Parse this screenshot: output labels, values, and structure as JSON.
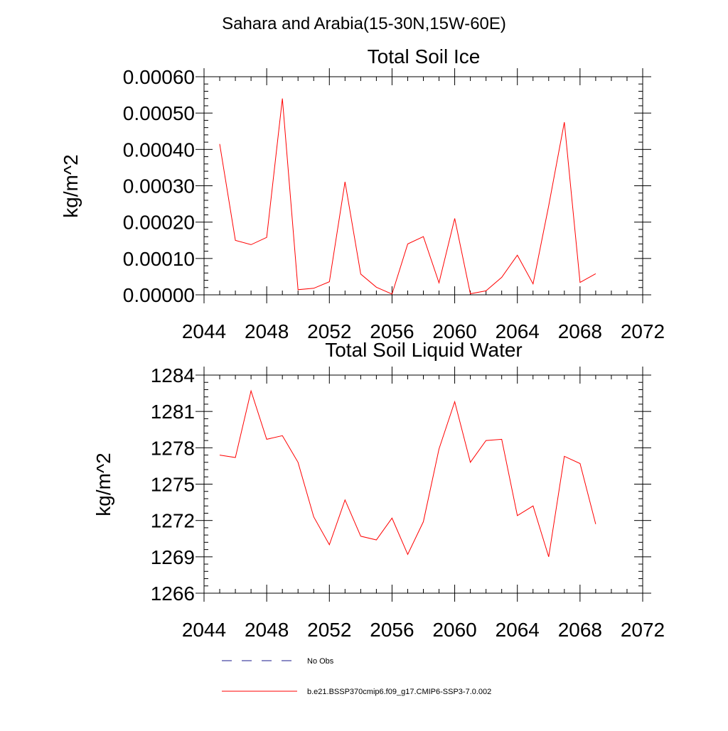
{
  "figure": {
    "suptitle": "Sahara and Arabia(15-30N,15W-60E)"
  },
  "colors": {
    "series": "#ff0000",
    "obs": "#1a1a8c",
    "axis": "#000000"
  },
  "legend": {
    "placement": "bottom",
    "items": [
      {
        "label": "No Obs",
        "style": "dashed",
        "color": "#1a1a8c"
      },
      {
        "label": "b.e21.BSSP370cmip6.f09_g17.CMIP6-SSP3-7.0.002",
        "style": "solid",
        "color": "#ff0000"
      }
    ]
  },
  "chart_data": [
    {
      "type": "line",
      "title": "Total Soil Ice",
      "xlabel": "",
      "ylabel": "kg/m^2",
      "xlim": [
        2044,
        2072
      ],
      "ylim": [
        0,
        0.0006
      ],
      "xticks": [
        2044,
        2048,
        2052,
        2056,
        2060,
        2064,
        2068,
        2072
      ],
      "xtick_labels": [
        "2044",
        "2048",
        "2052",
        "2056",
        "2060",
        "2064",
        "2068",
        "2072"
      ],
      "yticks": [
        0,
        0.0001,
        0.0002,
        0.0003,
        0.0004,
        0.0005,
        0.0006
      ],
      "ytick_labels": [
        "0.00000",
        "0.00010",
        "0.00020",
        "0.00030",
        "0.00040",
        "0.00050",
        "0.00060"
      ],
      "grid": false,
      "series": [
        {
          "name": "b.e21.BSSP370cmip6.f09_g17.CMIP6-SSP3-7.0.002",
          "color": "#ff0000",
          "x": [
            2045,
            2046,
            2047,
            2048,
            2049,
            2050,
            2051,
            2052,
            2053,
            2054,
            2055,
            2056,
            2057,
            2058,
            2059,
            2060,
            2061,
            2062,
            2063,
            2064,
            2065,
            2066,
            2067,
            2068,
            2069
          ],
          "y": [
            0.000415,
            0.00015,
            0.000138,
            0.000158,
            0.00054,
            1.4e-05,
            1.8e-05,
            3.6e-05,
            0.000311,
            5.7e-05,
            2.1e-05,
            2e-06,
            0.00014,
            0.00016,
            3.3e-05,
            0.00021,
            3e-06,
            1.1e-05,
            4.8e-05,
            0.000109,
            3e-05,
            0.000245,
            0.000475,
            3.4e-05,
            5.8e-05
          ]
        }
      ]
    },
    {
      "type": "line",
      "title": "Total Soil Liquid Water",
      "xlabel": "",
      "ylabel": "kg/m^2",
      "xlim": [
        2044,
        2072
      ],
      "ylim": [
        1266,
        1284
      ],
      "xticks": [
        2044,
        2048,
        2052,
        2056,
        2060,
        2064,
        2068,
        2072
      ],
      "xtick_labels": [
        "2044",
        "2048",
        "2052",
        "2056",
        "2060",
        "2064",
        "2068",
        "2072"
      ],
      "yticks": [
        1266,
        1269,
        1272,
        1275,
        1278,
        1281,
        1284
      ],
      "ytick_labels": [
        "1266",
        "1269",
        "1272",
        "1275",
        "1278",
        "1281",
        "1284"
      ],
      "grid": false,
      "series": [
        {
          "name": "b.e21.BSSP370cmip6.f09_g17.CMIP6-SSP3-7.0.002",
          "color": "#ff0000",
          "x": [
            2045,
            2046,
            2047,
            2048,
            2049,
            2050,
            2051,
            2052,
            2053,
            2054,
            2055,
            2056,
            2057,
            2058,
            2059,
            2060,
            2061,
            2062,
            2063,
            2064,
            2065,
            2066,
            2067,
            2068,
            2069
          ],
          "y": [
            1277.4,
            1277.2,
            1282.7,
            1278.7,
            1279.0,
            1276.8,
            1272.3,
            1270.0,
            1273.7,
            1270.7,
            1270.4,
            1272.2,
            1269.2,
            1271.9,
            1277.9,
            1281.8,
            1276.8,
            1278.6,
            1278.7,
            1272.4,
            1273.2,
            1269.0,
            1277.3,
            1276.7,
            1271.7
          ]
        }
      ]
    }
  ]
}
